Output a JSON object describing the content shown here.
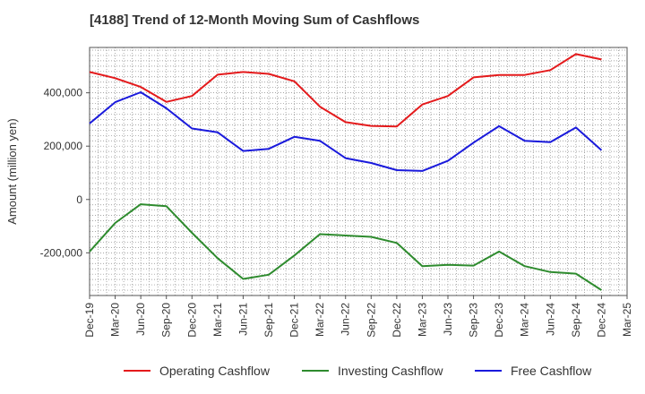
{
  "chart_data": {
    "type": "line",
    "title": "[4188]  Trend of 12-Month Moving Sum of Cashflows",
    "ylabel": "Amount (million yen)",
    "xlabel": "",
    "ylim": [
      -360000,
      570000
    ],
    "yticks": [
      400000,
      200000,
      0,
      -200000
    ],
    "ytick_labels": [
      "400,000",
      "200,000",
      "0",
      "-200,000"
    ],
    "grid": true,
    "legend_position": "bottom",
    "xtick_labels": [
      "Dec-19",
      "Mar-20",
      "Jun-20",
      "Sep-20",
      "Dec-20",
      "Mar-21",
      "Jun-21",
      "Sep-21",
      "Dec-21",
      "Mar-22",
      "Jun-22",
      "Sep-22",
      "Dec-22",
      "Mar-23",
      "Jun-23",
      "Sep-23",
      "Dec-23",
      "Mar-24",
      "Jun-24",
      "Sep-24",
      "Dec-24",
      "Mar-25"
    ],
    "x": [
      "Dec-19",
      "Mar-20",
      "Jun-20",
      "Sep-20",
      "Dec-20",
      "Mar-21",
      "Jun-21",
      "Sep-21",
      "Dec-21",
      "Mar-22",
      "Jun-22",
      "Sep-22",
      "Dec-22",
      "Mar-23",
      "Jun-23",
      "Sep-23",
      "Dec-23",
      "Mar-24",
      "Jun-24",
      "Sep-24",
      "Dec-24"
    ],
    "series": [
      {
        "name": "Operating Cashflow",
        "color": "#e41a1c",
        "values": [
          478000,
          455000,
          422000,
          366000,
          388000,
          468000,
          478000,
          471000,
          443000,
          348000,
          290000,
          276000,
          274000,
          356000,
          388000,
          458000,
          467000,
          467000,
          485000,
          545000,
          525000
        ]
      },
      {
        "name": "Investing Cashflow",
        "color": "#2e8b2e",
        "values": [
          -195000,
          -88000,
          -18000,
          -25000,
          -125000,
          -220000,
          -298000,
          -282000,
          -210000,
          -130000,
          -135000,
          -140000,
          -163000,
          -250000,
          -245000,
          -248000,
          -195000,
          -250000,
          -272000,
          -278000,
          -340000
        ]
      },
      {
        "name": "Free Cashflow",
        "color": "#1a1adc",
        "values": [
          285000,
          365000,
          402000,
          342000,
          266000,
          252000,
          182000,
          190000,
          235000,
          220000,
          155000,
          137000,
          110000,
          107000,
          145000,
          213000,
          275000,
          220000,
          215000,
          270000,
          185000
        ]
      }
    ]
  }
}
